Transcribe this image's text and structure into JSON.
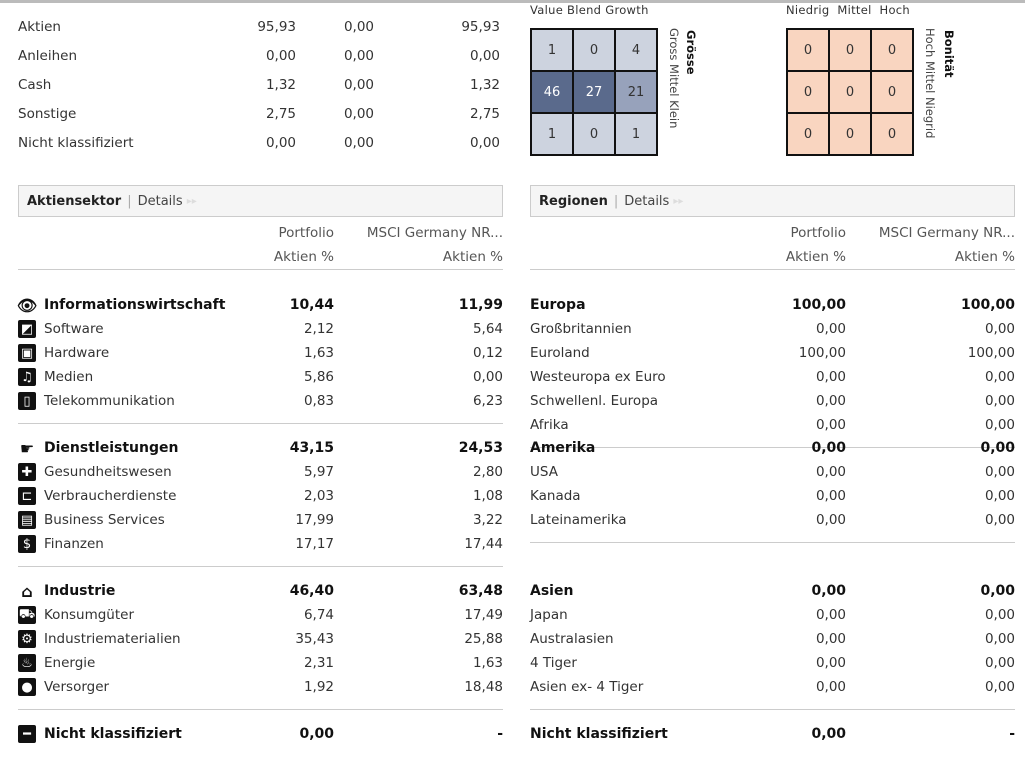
{
  "allocation": [
    {
      "name": "Aktien",
      "a": "95,93",
      "b": "0,00",
      "c": "95,93"
    },
    {
      "name": "Anleihen",
      "a": "0,00",
      "b": "0,00",
      "c": "0,00"
    },
    {
      "name": "Cash",
      "a": "1,32",
      "b": "0,00",
      "c": "1,32"
    },
    {
      "name": "Sonstige",
      "a": "2,75",
      "b": "0,00",
      "c": "2,75"
    },
    {
      "name": "Nicht klassifiziert",
      "a": "0,00",
      "b": "0,00",
      "c": "0,00"
    }
  ],
  "stylebox": {
    "top_label": "Value Blend Growth",
    "side_label": "Gross Mittel Klein",
    "title": "Grösse",
    "cells": [
      "1",
      "0",
      "4",
      "46",
      "27",
      "21",
      "1",
      "0",
      "1"
    ],
    "colors": {
      "light": "#cdd3df",
      "mid": "#97a2bb",
      "dark": "#5a6a8c"
    }
  },
  "creditbox": {
    "top_label": "Niedrig  Mittel  Hoch",
    "side_label": "Hoch Mittel Niegrid",
    "title": "Bonität",
    "cells": [
      "0",
      "0",
      "0",
      "0",
      "0",
      "0",
      "0",
      "0",
      "0"
    ],
    "color": "#f9d5c0"
  },
  "sector": {
    "title": "Aktiensektor",
    "details": "Details",
    "col1": "Portfolio",
    "col2": "MSCI Germany NR...",
    "sub1": "Aktien %",
    "sub2": "Aktien %",
    "groups": [
      {
        "name": "Informationswirtschaft",
        "p": "10,44",
        "m": "11,99",
        "icon": "eye-icon",
        "items": [
          {
            "name": "Software",
            "p": "2,12",
            "m": "5,64",
            "icon": "software-icon"
          },
          {
            "name": "Hardware",
            "p": "1,63",
            "m": "0,12",
            "icon": "hardware-icon"
          },
          {
            "name": "Medien",
            "p": "5,86",
            "m": "0,00",
            "icon": "media-icon"
          },
          {
            "name": "Telekommunikation",
            "p": "0,83",
            "m": "6,23",
            "icon": "telecom-icon"
          }
        ]
      },
      {
        "name": "Dienstleistungen",
        "p": "43,15",
        "m": "24,53",
        "icon": "service-icon",
        "items": [
          {
            "name": "Gesundheitswesen",
            "p": "5,97",
            "m": "2,80",
            "icon": "health-icon"
          },
          {
            "name": "Verbraucherdienste",
            "p": "2,03",
            "m": "1,08",
            "icon": "cart-icon"
          },
          {
            "name": "Business Services",
            "p": "17,99",
            "m": "3,22",
            "icon": "business-icon"
          },
          {
            "name": "Finanzen",
            "p": "17,17",
            "m": "17,44",
            "icon": "dollar-icon"
          }
        ]
      },
      {
        "name": "Industrie",
        "p": "46,40",
        "m": "63,48",
        "icon": "factory-icon",
        "items": [
          {
            "name": "Konsumgüter",
            "p": "6,74",
            "m": "17,49",
            "icon": "car-icon"
          },
          {
            "name": "Industriematerialien",
            "p": "35,43",
            "m": "25,88",
            "icon": "gear-icon"
          },
          {
            "name": "Energie",
            "p": "2,31",
            "m": "1,63",
            "icon": "flame-icon"
          },
          {
            "name": "Versorger",
            "p": "1,92",
            "m": "18,48",
            "icon": "bulb-icon"
          }
        ]
      }
    ],
    "unclassified": {
      "name": "Nicht klassifiziert",
      "p": "0,00",
      "m": "-"
    }
  },
  "regions": {
    "title": "Regionen",
    "details": "Details",
    "col1": "Portfolio",
    "col2": "MSCI Germany NR...",
    "sub1": "Aktien %",
    "sub2": "Aktien %",
    "groups": [
      {
        "name": "Europa",
        "p": "100,00",
        "m": "100,00",
        "items": [
          {
            "name": "Großbritannien",
            "p": "0,00",
            "m": "0,00"
          },
          {
            "name": "Euroland",
            "p": "100,00",
            "m": "100,00"
          },
          {
            "name": "Westeuropa ex Euro",
            "p": "0,00",
            "m": "0,00"
          },
          {
            "name": "Schwellenl. Europa",
            "p": "0,00",
            "m": "0,00"
          },
          {
            "name": "Afrika",
            "p": "0,00",
            "m": "0,00"
          }
        ]
      },
      {
        "name": "Amerika",
        "p": "0,00",
        "m": "0,00",
        "items": [
          {
            "name": "USA",
            "p": "0,00",
            "m": "0,00"
          },
          {
            "name": "Kanada",
            "p": "0,00",
            "m": "0,00"
          },
          {
            "name": "Lateinamerika",
            "p": "0,00",
            "m": "0,00"
          }
        ]
      },
      {
        "name": "Asien",
        "p": "0,00",
        "m": "0,00",
        "items": [
          {
            "name": "Japan",
            "p": "0,00",
            "m": "0,00"
          },
          {
            "name": "Australasien",
            "p": "0,00",
            "m": "0,00"
          },
          {
            "name": "4 Tiger",
            "p": "0,00",
            "m": "0,00"
          },
          {
            "name": "Asien ex- 4 Tiger",
            "p": "0,00",
            "m": "0,00"
          }
        ]
      }
    ],
    "unclassified": {
      "name": "Nicht klassifiziert",
      "p": "0,00",
      "m": "-"
    }
  }
}
